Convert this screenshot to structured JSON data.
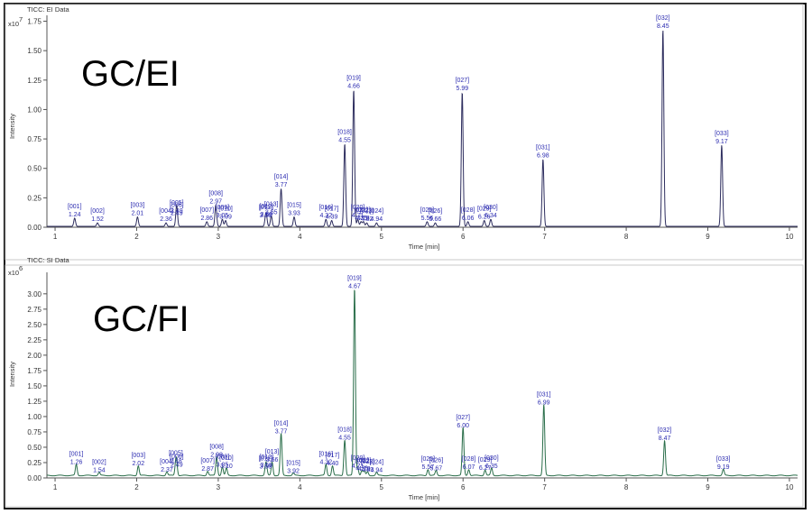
{
  "chart_data": [
    {
      "type": "line",
      "panel_title": "TICC: EI Data",
      "big_label": "GC/EI",
      "xlabel": "Time [min]",
      "ylabel": "Intensity",
      "y_exponent_base": "x10",
      "y_exponent_power": "7",
      "xlim": [
        0.9,
        10.1
      ],
      "ylim": [
        0,
        1.8
      ],
      "x_ticks": [
        "1",
        "2",
        "3",
        "4",
        "5",
        "6",
        "7",
        "8",
        "9",
        "10"
      ],
      "y_ticks": [
        "0.00",
        "0.25",
        "0.50",
        "0.75",
        "1.00",
        "1.25",
        "1.50",
        "1.75"
      ],
      "line_color": "#2d2d5e",
      "peaks": [
        {
          "id": "[001]",
          "rt": 1.24,
          "label": "1.24",
          "height": 0.07
        },
        {
          "id": "[002]",
          "rt": 1.52,
          "label": "1.52",
          "height": 0.03
        },
        {
          "id": "[003]",
          "rt": 2.01,
          "label": "2.01",
          "height": 0.08
        },
        {
          "id": "[004]",
          "rt": 2.36,
          "label": "2.36",
          "height": 0.03
        },
        {
          "id": "[005]",
          "rt": 2.49,
          "label": "2.49",
          "height": 0.1
        },
        {
          "id": "[006]",
          "rt": 2.49,
          "label": "2.49",
          "height": 0.08
        },
        {
          "id": "[007]",
          "rt": 2.86,
          "label": "2.86",
          "height": 0.04
        },
        {
          "id": "[008]",
          "rt": 2.97,
          "label": "2.97",
          "height": 0.18
        },
        {
          "id": "[009]",
          "rt": 3.05,
          "label": "3.05",
          "height": 0.06
        },
        {
          "id": "[010]",
          "rt": 3.09,
          "label": "3.09",
          "height": 0.05
        },
        {
          "id": "[011]",
          "rt": 3.58,
          "label": "3.58",
          "height": 0.06
        },
        {
          "id": "[012]",
          "rt": 3.59,
          "label": "3.59",
          "height": 0.07
        },
        {
          "id": "[013]",
          "rt": 3.65,
          "label": "3.65",
          "height": 0.09
        },
        {
          "id": "[014]",
          "rt": 3.77,
          "label": "3.77",
          "height": 0.32
        },
        {
          "id": "[015]",
          "rt": 3.93,
          "label": "3.93",
          "height": 0.08
        },
        {
          "id": "[016]",
          "rt": 4.32,
          "label": "4.32",
          "height": 0.06
        },
        {
          "id": "[017]",
          "rt": 4.39,
          "label": "4.39",
          "height": 0.05
        },
        {
          "id": "[018]",
          "rt": 4.55,
          "label": "4.55",
          "height": 0.7
        },
        {
          "id": "[019]",
          "rt": 4.66,
          "label": "4.66",
          "height": 1.16
        },
        {
          "id": "[020]",
          "rt": 4.71,
          "label": "4.71",
          "height": 0.06
        },
        {
          "id": "[021]",
          "rt": 4.75,
          "label": "4.75",
          "height": 0.04
        },
        {
          "id": "[022]",
          "rt": 4.78,
          "label": "4.78",
          "height": 0.04
        },
        {
          "id": "[023]",
          "rt": 4.82,
          "label": "4.82",
          "height": 0.03
        },
        {
          "id": "[024]",
          "rt": 4.94,
          "label": "4.94",
          "height": 0.03
        },
        {
          "id": "[025]",
          "rt": 5.56,
          "label": "5.56",
          "height": 0.04
        },
        {
          "id": "[026]",
          "rt": 5.66,
          "label": "5.66",
          "height": 0.03
        },
        {
          "id": "[027]",
          "rt": 5.99,
          "label": "5.99",
          "height": 1.14
        },
        {
          "id": "[028]",
          "rt": 6.06,
          "label": "6.06",
          "height": 0.04
        },
        {
          "id": "[029]",
          "rt": 6.26,
          "label": "6.26",
          "height": 0.05
        },
        {
          "id": "[030]",
          "rt": 6.34,
          "label": "6.34",
          "height": 0.06
        },
        {
          "id": "[031]",
          "rt": 6.98,
          "label": "6.98",
          "height": 0.57
        },
        {
          "id": "[032]",
          "rt": 8.45,
          "label": "8.45",
          "height": 1.67
        },
        {
          "id": "[033]",
          "rt": 9.17,
          "label": "9.17",
          "height": 0.69
        }
      ]
    },
    {
      "type": "line",
      "panel_title": "TICC: SI Data",
      "big_label": "GC/FI",
      "xlabel": "Time [min]",
      "ylabel": "Intensity",
      "y_exponent_base": "x10",
      "y_exponent_power": "6",
      "xlim": [
        0.9,
        10.1
      ],
      "ylim": [
        0,
        3.35
      ],
      "x_ticks": [
        "1",
        "2",
        "3",
        "4",
        "5",
        "6",
        "7",
        "8",
        "9",
        "10"
      ],
      "y_ticks": [
        "0.00",
        "0.25",
        "0.50",
        "0.75",
        "1.00",
        "1.25",
        "1.50",
        "1.75",
        "2.00",
        "2.25",
        "2.50",
        "2.75",
        "3.00"
      ],
      "line_color": "#2a6e4a",
      "peaks": [
        {
          "id": "[001]",
          "rt": 1.26,
          "label": "1.26",
          "height": 0.18
        },
        {
          "id": "[002]",
          "rt": 1.54,
          "label": "1.54",
          "height": 0.05
        },
        {
          "id": "[003]",
          "rt": 2.02,
          "label": "2.02",
          "height": 0.16
        },
        {
          "id": "[004]",
          "rt": 2.37,
          "label": "2.37",
          "height": 0.06
        },
        {
          "id": "[005]",
          "rt": 2.48,
          "label": "2.48",
          "height": 0.2
        },
        {
          "id": "[006]",
          "rt": 2.49,
          "label": "2.49",
          "height": 0.14
        },
        {
          "id": "[007]",
          "rt": 2.87,
          "label": "2.87",
          "height": 0.07
        },
        {
          "id": "[008]",
          "rt": 2.98,
          "label": "2.98",
          "height": 0.3
        },
        {
          "id": "[009]",
          "rt": 3.05,
          "label": "3.05",
          "height": 0.14
        },
        {
          "id": "[010]",
          "rt": 3.1,
          "label": "3.10",
          "height": 0.12
        },
        {
          "id": "[011]",
          "rt": 3.58,
          "label": "3.58",
          "height": 0.11
        },
        {
          "id": "[012]",
          "rt": 3.59,
          "label": "3.59",
          "height": 0.13
        },
        {
          "id": "[013]",
          "rt": 3.66,
          "label": "3.66",
          "height": 0.22
        },
        {
          "id": "[014]",
          "rt": 3.77,
          "label": "3.77",
          "height": 0.68
        },
        {
          "id": "[015]",
          "rt": 3.92,
          "label": "3.92",
          "height": 0.04
        },
        {
          "id": "[016]",
          "rt": 4.32,
          "label": "4.32",
          "height": 0.18
        },
        {
          "id": "[017]",
          "rt": 4.4,
          "label": "4.40",
          "height": 0.16
        },
        {
          "id": "[018]",
          "rt": 4.55,
          "label": "4.55",
          "height": 0.58
        },
        {
          "id": "[019]",
          "rt": 4.67,
          "label": "4.67",
          "height": 3.05
        },
        {
          "id": "[020]",
          "rt": 4.71,
          "label": "4.71",
          "height": 0.12
        },
        {
          "id": "[021]",
          "rt": 4.76,
          "label": "4.76",
          "height": 0.08
        },
        {
          "id": "[022]",
          "rt": 4.79,
          "label": "4.79",
          "height": 0.07
        },
        {
          "id": "[023]",
          "rt": 4.83,
          "label": "4.83",
          "height": 0.06
        },
        {
          "id": "[024]",
          "rt": 4.94,
          "label": "4.94",
          "height": 0.05
        },
        {
          "id": "[025]",
          "rt": 5.57,
          "label": "5.57",
          "height": 0.1
        },
        {
          "id": "[026]",
          "rt": 5.67,
          "label": "5.67",
          "height": 0.08
        },
        {
          "id": "[027]",
          "rt": 6.0,
          "label": "6.00",
          "height": 0.78
        },
        {
          "id": "[028]",
          "rt": 6.07,
          "label": "6.07",
          "height": 0.1
        },
        {
          "id": "[029]",
          "rt": 6.27,
          "label": "6.27",
          "height": 0.09
        },
        {
          "id": "[030]",
          "rt": 6.35,
          "label": "6.35",
          "height": 0.12
        },
        {
          "id": "[031]",
          "rt": 6.99,
          "label": "6.99",
          "height": 1.15
        },
        {
          "id": "[032]",
          "rt": 8.47,
          "label": "8.47",
          "height": 0.57
        },
        {
          "id": "[033]",
          "rt": 9.19,
          "label": "9.19",
          "height": 0.1
        }
      ]
    }
  ]
}
